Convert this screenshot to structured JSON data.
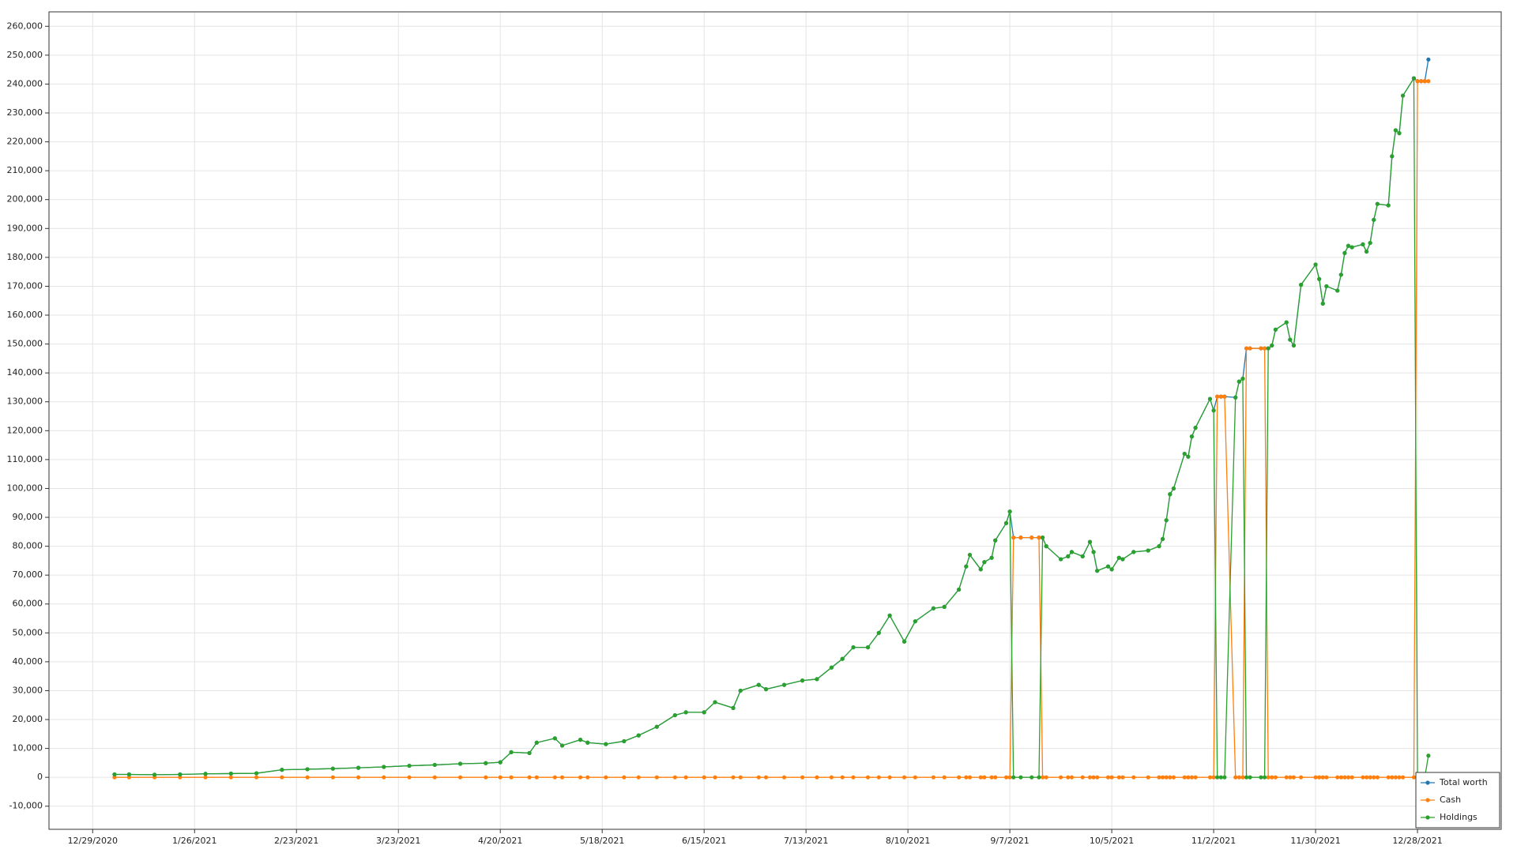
{
  "chart_data": {
    "type": "line",
    "x": [
      "1/4/2021",
      "1/8/2021",
      "1/15/2021",
      "1/22/2021",
      "1/29/2021",
      "2/5/2021",
      "2/12/2021",
      "2/19/2021",
      "2/26/2021",
      "3/5/2021",
      "3/12/2021",
      "3/19/2021",
      "3/26/2021",
      "4/2/2021",
      "4/9/2021",
      "4/16/2021",
      "4/20/2021",
      "4/23/2021",
      "4/28/2021",
      "4/30/2021",
      "5/5/2021",
      "5/7/2021",
      "5/12/2021",
      "5/14/2021",
      "5/19/2021",
      "5/24/2021",
      "5/28/2021",
      "6/2/2021",
      "6/7/2021",
      "6/10/2021",
      "6/15/2021",
      "6/18/2021",
      "6/23/2021",
      "6/25/2021",
      "6/30/2021",
      "7/2/2021",
      "7/7/2021",
      "7/12/2021",
      "7/16/2021",
      "7/20/2021",
      "7/23/2021",
      "7/26/2021",
      "7/30/2021",
      "8/2/2021",
      "8/5/2021",
      "8/9/2021",
      "8/12/2021",
      "8/17/2021",
      "8/20/2021",
      "8/24/2021",
      "8/26/2021",
      "8/27/2021",
      "8/30/2021",
      "8/31/2021",
      "9/2/2021",
      "9/3/2021",
      "9/6/2021",
      "9/7/2021",
      "9/8/2021",
      "9/10/2021",
      "9/13/2021",
      "9/15/2021",
      "9/16/2021",
      "9/17/2021",
      "9/21/2021",
      "9/23/2021",
      "9/24/2021",
      "9/27/2021",
      "9/29/2021",
      "9/30/2021",
      "10/1/2021",
      "10/4/2021",
      "10/5/2021",
      "10/7/2021",
      "10/8/2021",
      "10/11/2021",
      "10/15/2021",
      "10/18/2021",
      "10/19/2021",
      "10/20/2021",
      "10/21/2021",
      "10/22/2021",
      "10/25/2021",
      "10/26/2021",
      "10/27/2021",
      "10/28/2021",
      "11/1/2021",
      "11/2/2021",
      "11/3/2021",
      "11/4/2021",
      "11/5/2021",
      "11/8/2021",
      "11/9/2021",
      "11/10/2021",
      "11/11/2021",
      "11/12/2021",
      "11/15/2021",
      "11/16/2021",
      "11/17/2021",
      "11/18/2021",
      "11/19/2021",
      "11/22/2021",
      "11/23/2021",
      "11/24/2021",
      "11/26/2021",
      "11/30/2021",
      "12/1/2021",
      "12/2/2021",
      "12/3/2021",
      "12/6/2021",
      "12/7/2021",
      "12/8/2021",
      "12/9/2021",
      "12/10/2021",
      "12/13/2021",
      "12/14/2021",
      "12/15/2021",
      "12/16/2021",
      "12/17/2021",
      "12/20/2021",
      "12/21/2021",
      "12/22/2021",
      "12/23/2021",
      "12/24/2021",
      "12/27/2021",
      "12/28/2021",
      "12/29/2021",
      "12/30/2021",
      "12/31/2021"
    ],
    "series": [
      {
        "name": "Total worth",
        "color": "#1f77b4",
        "values": [
          1000,
          1000,
          900,
          1000,
          1200,
          1300,
          1400,
          2600,
          2800,
          3000,
          3300,
          3600,
          4000,
          4300,
          4700,
          4900,
          5200,
          8700,
          8400,
          12000,
          13500,
          11000,
          13000,
          12000,
          11500,
          12500,
          14500,
          17500,
          21500,
          22500,
          22500,
          26000,
          24000,
          30000,
          32000,
          30500,
          32000,
          33500,
          34000,
          38000,
          41000,
          45000,
          45000,
          50000,
          56000,
          47000,
          54000,
          58500,
          59000,
          65000,
          73000,
          77000,
          72000,
          74500,
          76000,
          82000,
          88000,
          92000,
          83000,
          83000,
          83000,
          83000,
          83000,
          80000,
          75500,
          76500,
          78000,
          76500,
          81500,
          78000,
          71500,
          73000,
          72000,
          76000,
          75500,
          78000,
          78500,
          80000,
          82500,
          89000,
          98000,
          100000,
          112000,
          111000,
          118000,
          121000,
          131000,
          127000,
          131800,
          131800,
          131800,
          131500,
          137000,
          138000,
          148500,
          148500,
          148500,
          148500,
          148500,
          149500,
          155000,
          157500,
          151500,
          149500,
          170500,
          177500,
          172500,
          164000,
          170000,
          168500,
          174000,
          181500,
          184000,
          183500,
          184500,
          182000,
          185000,
          193000,
          198500,
          198000,
          215000,
          224000,
          223000,
          236000,
          242000,
          241000,
          241000,
          241000,
          248500
        ]
      },
      {
        "name": "Cash",
        "color": "#ff7f0e",
        "values": [
          0,
          0,
          0,
          0,
          0,
          0,
          0,
          0,
          0,
          0,
          0,
          0,
          0,
          0,
          0,
          0,
          0,
          0,
          0,
          0,
          0,
          0,
          0,
          0,
          0,
          0,
          0,
          0,
          0,
          0,
          0,
          0,
          0,
          0,
          0,
          0,
          0,
          0,
          0,
          0,
          0,
          0,
          0,
          0,
          0,
          0,
          0,
          0,
          0,
          0,
          0,
          0,
          0,
          0,
          0,
          0,
          0,
          0,
          83000,
          83000,
          83000,
          83000,
          0,
          0,
          0,
          0,
          0,
          0,
          0,
          0,
          0,
          0,
          0,
          0,
          0,
          0,
          0,
          0,
          0,
          0,
          0,
          0,
          0,
          0,
          0,
          0,
          0,
          0,
          131800,
          131800,
          131800,
          0,
          0,
          0,
          148500,
          148500,
          148500,
          148500,
          0,
          0,
          0,
          0,
          0,
          0,
          0,
          0,
          0,
          0,
          0,
          0,
          0,
          0,
          0,
          0,
          0,
          0,
          0,
          0,
          0,
          0,
          0,
          0,
          0,
          0,
          0,
          241000,
          241000,
          241000,
          241000
        ]
      },
      {
        "name": "Holdings",
        "color": "#2ca02c",
        "values": [
          1000,
          1000,
          900,
          1000,
          1200,
          1300,
          1400,
          2600,
          2800,
          3000,
          3300,
          3600,
          4000,
          4300,
          4700,
          4900,
          5200,
          8700,
          8400,
          12000,
          13500,
          11000,
          13000,
          12000,
          11500,
          12500,
          14500,
          17500,
          21500,
          22500,
          22500,
          26000,
          24000,
          30000,
          32000,
          30500,
          32000,
          33500,
          34000,
          38000,
          41000,
          45000,
          45000,
          50000,
          56000,
          47000,
          54000,
          58500,
          59000,
          65000,
          73000,
          77000,
          72000,
          74500,
          76000,
          82000,
          88000,
          92000,
          0,
          0,
          0,
          0,
          83000,
          80000,
          75500,
          76500,
          78000,
          76500,
          81500,
          78000,
          71500,
          73000,
          72000,
          76000,
          75500,
          78000,
          78500,
          80000,
          82500,
          89000,
          98000,
          100000,
          112000,
          111000,
          118000,
          121000,
          131000,
          127000,
          0,
          0,
          0,
          131500,
          137000,
          138000,
          0,
          0,
          0,
          0,
          148500,
          149500,
          155000,
          157500,
          151500,
          149500,
          170500,
          177500,
          172500,
          164000,
          170000,
          168500,
          174000,
          181500,
          184000,
          183500,
          184500,
          182000,
          185000,
          193000,
          198500,
          198000,
          215000,
          224000,
          223000,
          236000,
          242000,
          0,
          0,
          0,
          7500
        ]
      }
    ],
    "xlim": [
      "12/17/2020",
      "1/20/2022"
    ],
    "xticks": [
      "12/29/2020",
      "1/26/2021",
      "2/23/2021",
      "3/23/2021",
      "4/20/2021",
      "5/18/2021",
      "6/15/2021",
      "7/13/2021",
      "8/10/2021",
      "9/7/2021",
      "10/5/2021",
      "11/2/2021",
      "11/30/2021",
      "12/28/2021"
    ],
    "ylim": [
      -18000,
      265000
    ],
    "yticks": [
      {
        "value": -10000,
        "label": "-10,000"
      },
      0,
      {
        "value": 10000,
        "label": "10,000"
      },
      {
        "value": 20000,
        "label": "20,000"
      },
      {
        "value": 30000,
        "label": "30,000"
      },
      {
        "value": 40000,
        "label": "40,000"
      },
      {
        "value": 50000,
        "label": "50,000"
      },
      {
        "value": 60000,
        "label": "60,000"
      },
      {
        "value": 70000,
        "label": "70,000"
      },
      {
        "value": 80000,
        "label": "80,000"
      },
      {
        "value": 90000,
        "label": "90,000"
      },
      {
        "value": 100000,
        "label": "100,000"
      },
      {
        "value": 110000,
        "label": "110,000"
      },
      {
        "value": 120000,
        "label": "120,000"
      },
      {
        "value": 130000,
        "label": "130,000"
      },
      {
        "value": 140000,
        "label": "140,000"
      },
      {
        "value": 150000,
        "label": "150,000"
      },
      {
        "value": 160000,
        "label": "160,000"
      },
      {
        "value": 170000,
        "label": "170,000"
      },
      {
        "value": 180000,
        "label": "180,000"
      },
      {
        "value": 190000,
        "label": "190,000"
      },
      {
        "value": 200000,
        "label": "200,000"
      },
      {
        "value": 210000,
        "label": "210,000"
      },
      {
        "value": 220000,
        "label": "220,000"
      },
      {
        "value": 230000,
        "label": "230,000"
      },
      {
        "value": 240000,
        "label": "240,000"
      },
      {
        "value": 250000,
        "label": "250,000"
      },
      {
        "value": 260000,
        "label": "260,000"
      }
    ],
    "grid": true,
    "legend": "lower right"
  }
}
